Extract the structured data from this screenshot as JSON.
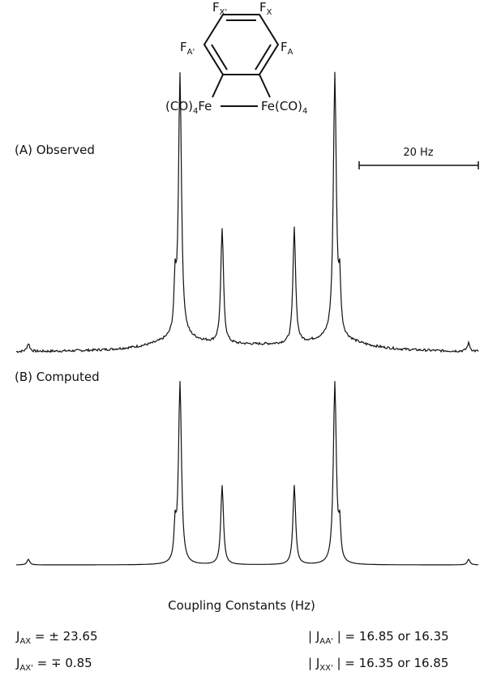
{
  "structure": {
    "labels": [
      {
        "main": "F",
        "sub": "X'"
      },
      {
        "main": "F",
        "sub": "X"
      },
      {
        "main": "F",
        "sub": "A'"
      },
      {
        "main": "F",
        "sub": "A"
      }
    ],
    "left": {
      "pre": "(CO)",
      "sub": "4",
      "post": "Fe"
    },
    "right": {
      "pre": "Fe(CO)",
      "sub": "4"
    }
  },
  "scale_bar": "20 Hz",
  "spectra": [
    {
      "label": "(A) Observed"
    },
    {
      "label": "(B) Computed"
    }
  ],
  "constants": {
    "title": "Coupling Constants (Hz)",
    "left": [
      {
        "main": "J",
        "sub": "AX",
        "rest": " = ± 23.65"
      },
      {
        "main": "J",
        "sub": "AX'",
        "rest": " = ∓ 0.85"
      }
    ],
    "right": [
      {
        "pre": "| J",
        "sub": "AA'",
        "rest": " | = 16.85 or 16.35"
      },
      {
        "pre": "| J",
        "sub": "XX'",
        "rest": " | = 16.35 or 16.85"
      }
    ]
  }
}
